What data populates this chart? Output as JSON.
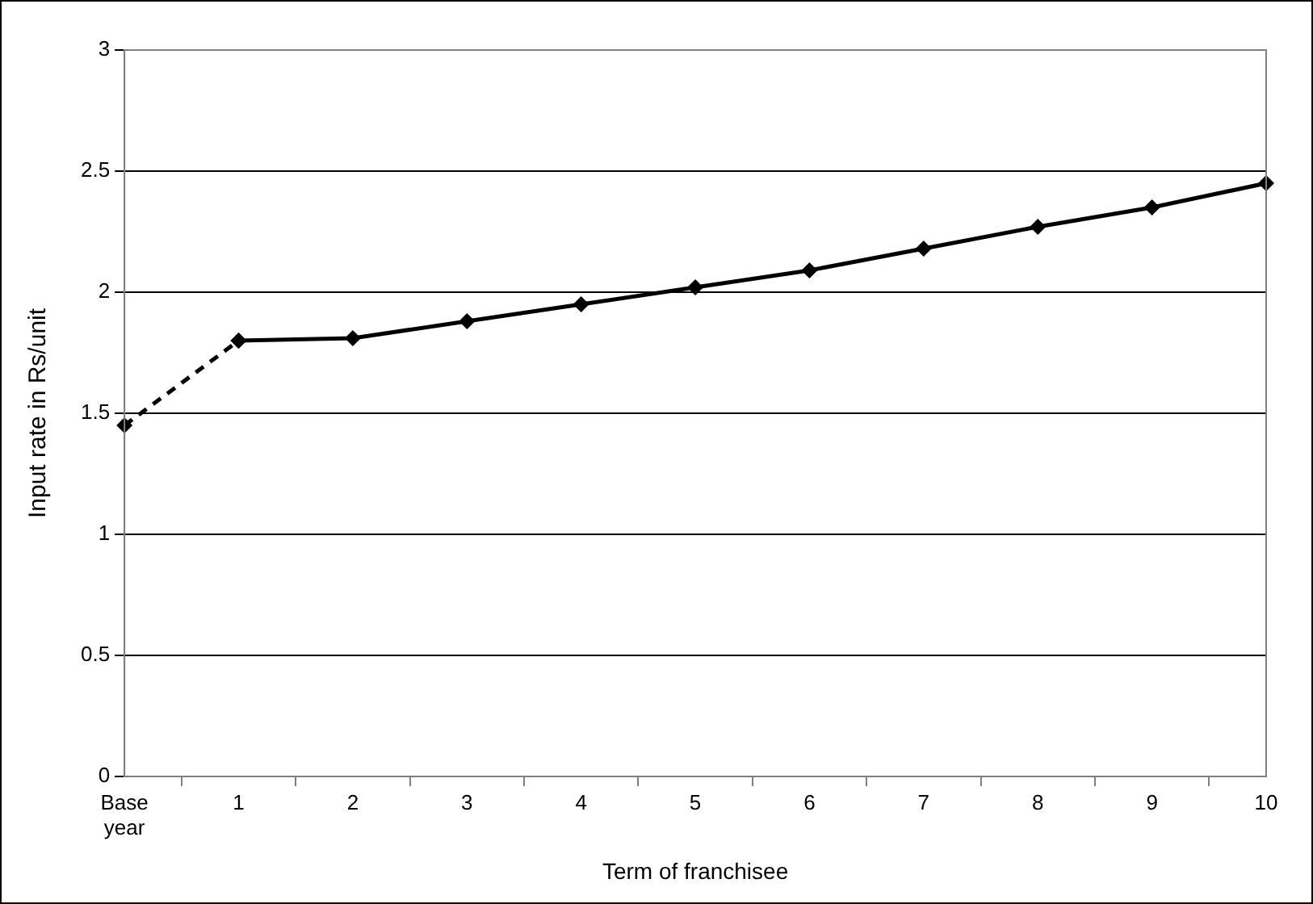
{
  "chart_data": {
    "type": "line",
    "xlabel": "Term of franchisee",
    "ylabel": "Input rate in Rs/unit",
    "categories": [
      "Base year",
      "1",
      "2",
      "3",
      "4",
      "5",
      "6",
      "7",
      "8",
      "9",
      "10"
    ],
    "series": [
      {
        "color": "#000000",
        "line_style": "dashed",
        "values": [
          1.45,
          1.8,
          null,
          null,
          null,
          null,
          null,
          null,
          null,
          null,
          null
        ]
      },
      {
        "color": "#000000",
        "line_style": "solid",
        "values": [
          null,
          1.8,
          1.81,
          1.88,
          1.95,
          2.02,
          2.09,
          2.18,
          2.27,
          2.35,
          2.45
        ]
      }
    ],
    "ylim": [
      0,
      3
    ],
    "yticks": [
      0,
      0.5,
      1,
      1.5,
      2,
      2.5,
      3
    ],
    "grid": "y",
    "legend": false,
    "marker": "diamond"
  }
}
